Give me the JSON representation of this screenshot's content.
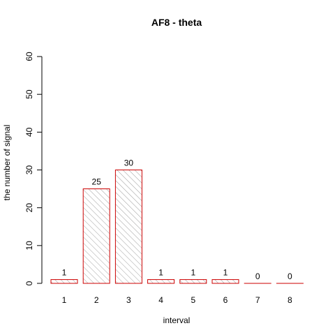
{
  "chart_data": {
    "type": "bar",
    "title": "AF8  -  theta",
    "xlabel": "interval",
    "ylabel": "the number of signal",
    "categories": [
      "1",
      "2",
      "3",
      "4",
      "5",
      "6",
      "7",
      "8"
    ],
    "values": [
      1,
      25,
      30,
      1,
      1,
      1,
      0,
      0
    ],
    "data_labels": [
      "1",
      "25",
      "30",
      "1",
      "1",
      "1",
      "0",
      "0"
    ],
    "ylim": [
      0,
      60
    ],
    "yticks": [
      0,
      10,
      20,
      30,
      40,
      50,
      60
    ],
    "ytick_labels": [
      "0",
      "10",
      "20",
      "30",
      "40",
      "50",
      "60"
    ],
    "grid": false,
    "legend": "none",
    "bar_fill": "hatched",
    "colors": {
      "bar_border": "#cc0000",
      "hatch": "#a0a0a0",
      "axis": "#000000",
      "text": "#000000"
    }
  }
}
